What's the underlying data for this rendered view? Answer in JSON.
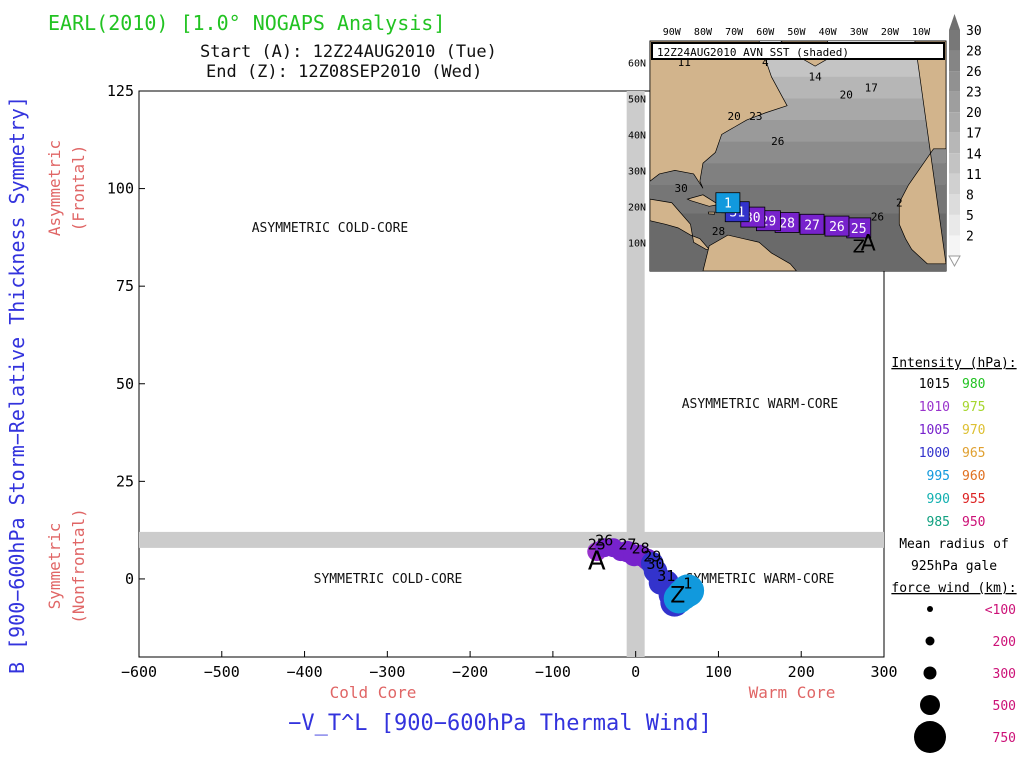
{
  "header": {
    "title": "EARL(2010) [1.0° NOGAPS Analysis]",
    "start_line": "Start (A): 12Z24AUG2010 (Tue)",
    "end_line": "End (Z): 12Z08SEP2010 (Wed)"
  },
  "colors": {
    "title": "#22c322",
    "ylabel": "#3333dd",
    "xlabel": "#3333dd",
    "region_label": "#e06666",
    "band": "#cccccc",
    "land": "#d2b48c"
  },
  "chart_data": {
    "type": "scatter",
    "title": "EARL(2010) [1.0° NOGAPS Analysis]",
    "xlabel": "−V_T^L [900−600hPa Thermal Wind]",
    "ylabel": "B [900−600hPa Storm−Relative Thickness Symmetry]",
    "xlim": [
      -600,
      300
    ],
    "ylim": [
      -20,
      125
    ],
    "xticks": [
      -600,
      -500,
      -400,
      -300,
      -200,
      -100,
      0,
      100,
      200,
      300
    ],
    "yticks": [
      0,
      25,
      50,
      75,
      100,
      125
    ],
    "x_tick_labels": [
      "−600",
      "−500",
      "−400",
      "−300",
      "−200",
      "−100",
      "0",
      "100",
      "200",
      "300"
    ],
    "y_tick_labels": [
      "0",
      "25",
      "50",
      "75",
      "100",
      "125"
    ],
    "x_axis_annotations": {
      "left": "Cold Core",
      "right": "Warm Core"
    },
    "y_axis_annotations": {
      "upper": [
        "Asymmetric",
        "(Frontal)"
      ],
      "lower": [
        "Symmetric",
        "(Nonfrontal)"
      ]
    },
    "threshold_bands": {
      "x": 0,
      "y": 10
    },
    "quadrant_labels": {
      "upper_left": "ASYMMETRIC COLD-CORE",
      "upper_right": "ASYMMETRIC WARM-CORE",
      "lower_left": "SYMMETRIC COLD-CORE",
      "lower_right": "SYMMETRIC WARM-CORE"
    },
    "track_labels": {
      "start": "A",
      "end": "Z"
    },
    "track": [
      {
        "x": -47,
        "y": 7,
        "p": 1008,
        "r": 100,
        "label": "25"
      },
      {
        "x": -38,
        "y": 8,
        "p": 1007,
        "r": 100,
        "label": "26"
      },
      {
        "x": -27,
        "y": 8,
        "p": 1006,
        "r": 100
      },
      {
        "x": -18,
        "y": 7,
        "p": 1006,
        "r": 100
      },
      {
        "x": -10,
        "y": 7,
        "p": 1005,
        "r": 150,
        "label": "27"
      },
      {
        "x": -2,
        "y": 6,
        "p": 1004,
        "r": 150
      },
      {
        "x": 6,
        "y": 6,
        "p": 1003,
        "r": 150,
        "label": "28"
      },
      {
        "x": 14,
        "y": 5,
        "p": 1003,
        "r": 150
      },
      {
        "x": 20,
        "y": 4,
        "p": 1002,
        "r": 180,
        "label": "29"
      },
      {
        "x": 24,
        "y": 2,
        "p": 1001,
        "r": 200,
        "label": "30"
      },
      {
        "x": 30,
        "y": -1,
        "p": 1000,
        "r": 200
      },
      {
        "x": 37,
        "y": -1,
        "p": 999,
        "r": 250,
        "label": "31"
      },
      {
        "x": 44,
        "y": -4,
        "p": 998,
        "r": 300
      },
      {
        "x": 47,
        "y": -6,
        "p": 998,
        "r": 350
      },
      {
        "x": 52,
        "y": -5,
        "p": 996,
        "r": 400
      },
      {
        "x": 57,
        "y": -4,
        "p": 995,
        "r": 450
      },
      {
        "x": 63,
        "y": -3,
        "p": 994,
        "r": 500,
        "label": "1"
      }
    ]
  },
  "intensity_legend": {
    "title": "Intensity (hPa):",
    "rows": [
      {
        "left": "1015",
        "left_color": "#000000",
        "right": "980",
        "right_color": "#22c322"
      },
      {
        "left": "1010",
        "left_color": "#9933cc",
        "right": "975",
        "right_color": "#a6d62e"
      },
      {
        "left": "1005",
        "left_color": "#7722cc",
        "right": "970",
        "right_color": "#ddc033"
      },
      {
        "left": "1000",
        "left_color": "#3333cc",
        "right": "965",
        "right_color": "#e0a030"
      },
      {
        "left": "995",
        "left_color": "#1199dd",
        "right": "960",
        "right_color": "#e07020"
      },
      {
        "left": "990",
        "left_color": "#11b0b0",
        "right": "955",
        "right_color": "#dd2222"
      },
      {
        "left": "985",
        "left_color": "#11a080",
        "right": "950",
        "right_color": "#cc1177"
      }
    ]
  },
  "radius_legend": {
    "title_lines": [
      "Mean radius of",
      "925hPa gale",
      "force wind (km):"
    ],
    "rows": [
      {
        "label": "<100",
        "color": "#cc1177"
      },
      {
        "label": "200",
        "color": "#cc1177"
      },
      {
        "label": "300",
        "color": "#cc1177"
      },
      {
        "label": "500",
        "color": "#cc1177"
      },
      {
        "label": "750",
        "color": "#cc1177"
      }
    ]
  },
  "inset_map": {
    "title": "12Z24AUG2010 AVN SST (shaded)",
    "lon_labels": [
      "90W",
      "80W",
      "70W",
      "60W",
      "50W",
      "40W",
      "30W",
      "20W",
      "10W"
    ],
    "lat_labels": [
      "60N",
      "50N",
      "40N",
      "30N",
      "20N",
      "10N"
    ],
    "colorbar_labels": [
      "30",
      "28",
      "26",
      "23",
      "20",
      "17",
      "14",
      "11",
      "8",
      "5",
      "2"
    ],
    "contour_labels": [
      {
        "text": "11",
        "lon": -86,
        "lat": 59
      },
      {
        "text": "4",
        "lon": -60,
        "lat": 59
      },
      {
        "text": "14",
        "lon": -44,
        "lat": 55
      },
      {
        "text": "17",
        "lon": -26,
        "lat": 52
      },
      {
        "text": "20",
        "lon": -34,
        "lat": 50
      },
      {
        "text": "20",
        "lon": -70,
        "lat": 44
      },
      {
        "text": "23",
        "lon": -63,
        "lat": 44
      },
      {
        "text": "26",
        "lon": -56,
        "lat": 37
      },
      {
        "text": "30",
        "lon": -87,
        "lat": 24
      },
      {
        "text": "26",
        "lon": -24,
        "lat": 16
      },
      {
        "text": "2",
        "lon": -17,
        "lat": 20
      },
      {
        "text": "28",
        "lon": -75,
        "lat": 12
      }
    ],
    "track_boxes": [
      {
        "label": "25",
        "lon": -30,
        "lat": 14,
        "color": "#7722cc"
      },
      {
        "label": "26",
        "lon": -37,
        "lat": 14.5,
        "color": "#7722cc"
      },
      {
        "label": "27",
        "lon": -45,
        "lat": 15,
        "color": "#7722cc"
      },
      {
        "label": "28",
        "lon": -53,
        "lat": 15.5,
        "color": "#7722cc"
      },
      {
        "label": "29",
        "lon": -59,
        "lat": 16,
        "color": "#7722cc"
      },
      {
        "label": "30",
        "lon": -64,
        "lat": 17,
        "color": "#7722cc"
      },
      {
        "label": "31",
        "lon": -69,
        "lat": 18.5,
        "color": "#3333cc"
      },
      {
        "label": "1",
        "lon": -72,
        "lat": 21,
        "color": "#1199dd"
      }
    ],
    "track_end_labels": {
      "start": "A",
      "end": "Z"
    }
  }
}
